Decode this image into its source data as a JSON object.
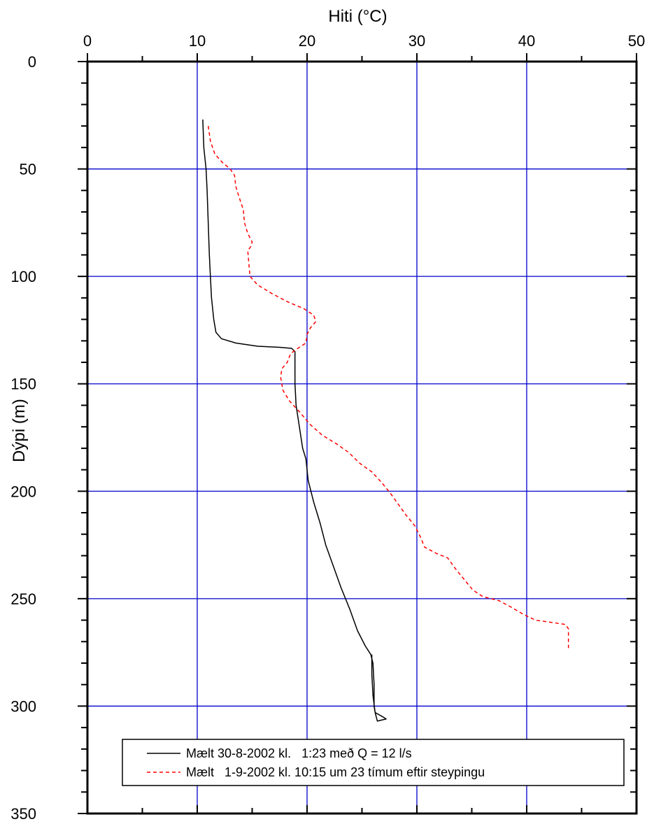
{
  "chart_data": {
    "type": "line",
    "orientation": "depth-profile",
    "xlabel": "Hiti (°C)",
    "ylabel": "Dýpi (m)",
    "x_axis_position": "top",
    "y_axis_inverted": true,
    "xlim": [
      0,
      50
    ],
    "ylim": [
      0,
      350
    ],
    "x_ticks": [
      0,
      10,
      20,
      30,
      40,
      50
    ],
    "y_ticks": [
      0,
      50,
      100,
      150,
      200,
      250,
      300,
      350
    ],
    "grid": true,
    "grid_color": "#0000cc",
    "legend_position": "bottom",
    "series": [
      {
        "name": "Mælt 30-8-2002 kl.   1:23 með Q = 12 l/s",
        "color": "#000000",
        "dash": "solid",
        "points": [
          [
            10.5,
            27
          ],
          [
            10.6,
            40
          ],
          [
            10.8,
            50
          ],
          [
            10.9,
            60
          ],
          [
            11.0,
            75
          ],
          [
            11.1,
            90
          ],
          [
            11.2,
            100
          ],
          [
            11.3,
            110
          ],
          [
            11.5,
            120
          ],
          [
            11.7,
            126
          ],
          [
            12.2,
            129
          ],
          [
            13.5,
            131
          ],
          [
            15.5,
            132.5
          ],
          [
            17.5,
            133
          ],
          [
            18.6,
            133.5
          ],
          [
            18.9,
            135
          ],
          [
            18.9,
            140
          ],
          [
            18.9,
            150
          ],
          [
            19.0,
            160
          ],
          [
            19.3,
            170
          ],
          [
            19.6,
            180
          ],
          [
            19.9,
            185
          ],
          [
            20.1,
            195
          ],
          [
            20.6,
            205
          ],
          [
            21.2,
            215
          ],
          [
            21.7,
            225
          ],
          [
            22.4,
            235
          ],
          [
            23.1,
            245
          ],
          [
            23.9,
            255
          ],
          [
            24.6,
            265
          ],
          [
            25.3,
            272
          ],
          [
            25.8,
            276
          ],
          [
            26.0,
            280
          ],
          [
            26.1,
            290
          ],
          [
            26.1,
            300
          ],
          [
            26.2,
            303
          ],
          [
            26.9,
            305
          ],
          [
            27.2,
            306
          ],
          [
            26.4,
            307
          ],
          [
            26.2,
            303
          ],
          [
            26.0,
            295
          ],
          [
            25.9,
            285
          ],
          [
            25.9,
            276
          ]
        ]
      },
      {
        "name": "Mælt   1-9-2002 kl. 10:15 um 23 tímum eftir steypingu",
        "color": "#ff0000",
        "dash": "dashed",
        "points": [
          [
            11.0,
            30
          ],
          [
            11.2,
            37
          ],
          [
            11.6,
            43
          ],
          [
            12.3,
            47
          ],
          [
            13.0,
            50
          ],
          [
            13.4,
            53
          ],
          [
            13.5,
            58
          ],
          [
            13.8,
            63
          ],
          [
            14.2,
            69
          ],
          [
            14.3,
            75
          ],
          [
            14.6,
            80
          ],
          [
            15.0,
            84
          ],
          [
            14.9,
            86
          ],
          [
            14.6,
            88
          ],
          [
            14.7,
            94
          ],
          [
            14.8,
            100
          ],
          [
            15.5,
            104
          ],
          [
            16.8,
            108
          ],
          [
            18.3,
            112
          ],
          [
            19.7,
            115
          ],
          [
            20.6,
            118
          ],
          [
            20.8,
            121
          ],
          [
            20.3,
            124
          ],
          [
            20.0,
            127
          ],
          [
            19.9,
            131
          ],
          [
            19.0,
            134
          ],
          [
            18.5,
            136
          ],
          [
            18.2,
            140
          ],
          [
            17.7,
            143
          ],
          [
            17.6,
            147
          ],
          [
            17.8,
            153
          ],
          [
            18.4,
            158
          ],
          [
            19.3,
            163
          ],
          [
            20.3,
            169
          ],
          [
            21.4,
            174
          ],
          [
            22.7,
            178
          ],
          [
            23.8,
            182
          ],
          [
            24.8,
            187
          ],
          [
            25.9,
            191
          ],
          [
            26.8,
            196
          ],
          [
            27.6,
            201
          ],
          [
            28.3,
            206
          ],
          [
            29.0,
            211
          ],
          [
            29.8,
            216
          ],
          [
            30.3,
            221
          ],
          [
            30.7,
            226
          ],
          [
            31.8,
            229
          ],
          [
            32.8,
            231
          ],
          [
            33.5,
            236
          ],
          [
            34.3,
            241
          ],
          [
            35.1,
            246
          ],
          [
            36.0,
            249
          ],
          [
            37.5,
            251
          ],
          [
            38.6,
            254
          ],
          [
            39.6,
            257
          ],
          [
            40.8,
            260
          ],
          [
            42.2,
            261
          ],
          [
            43.5,
            262
          ],
          [
            43.8,
            264
          ],
          [
            43.8,
            268
          ],
          [
            43.8,
            273
          ]
        ]
      }
    ]
  }
}
